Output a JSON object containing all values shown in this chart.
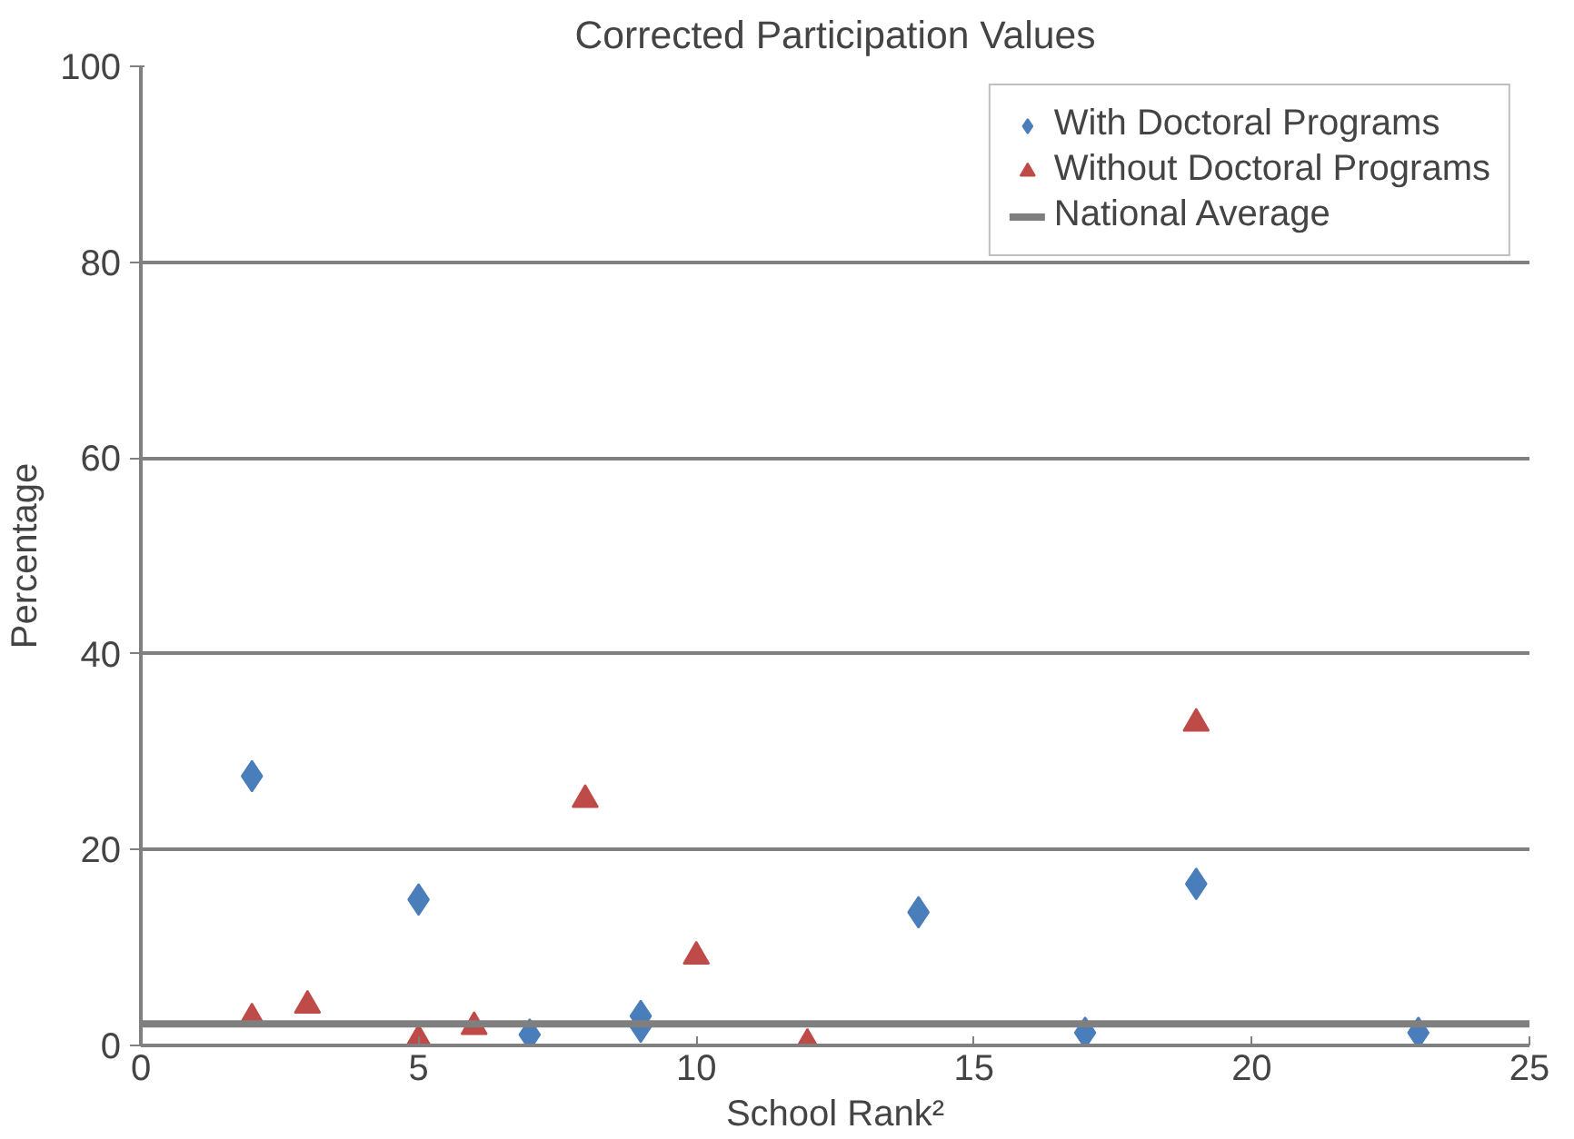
{
  "chart_data": {
    "type": "scatter",
    "title": "Corrected Participation Values",
    "xlabel": "School Rank²",
    "ylabel": "Percentage",
    "xlim": [
      0,
      25
    ],
    "xticks": [
      0,
      5,
      10,
      15,
      20,
      25
    ],
    "ylim": [
      0,
      100
    ],
    "yticks": [
      0,
      20,
      40,
      60,
      80,
      100
    ],
    "grid": "y",
    "legend": "top right",
    "series": [
      {
        "name": "With Doctoral Programs",
        "color": "#4a7ebb",
        "marker": "diamond",
        "x": [
          2,
          5,
          7,
          9,
          9,
          14,
          17,
          19,
          23
        ],
        "values": [
          27.5,
          14.9,
          1.1,
          3.0,
          1.9,
          13.6,
          1.3,
          16.5,
          1.3
        ]
      },
      {
        "name": "Without Doctoral Programs",
        "color": "#be4b48",
        "marker": "triangle",
        "x": [
          2,
          3,
          5,
          6,
          8,
          10,
          12,
          19
        ],
        "values": [
          2.8,
          4.1,
          0.6,
          1.9,
          25.1,
          9.1,
          0.2,
          32.9
        ]
      },
      {
        "name": "National Average",
        "type": "line",
        "color": "#7f7f7f",
        "marker": "none",
        "x": [
          0,
          25
        ],
        "values": [
          2.2,
          2.2
        ]
      }
    ]
  }
}
